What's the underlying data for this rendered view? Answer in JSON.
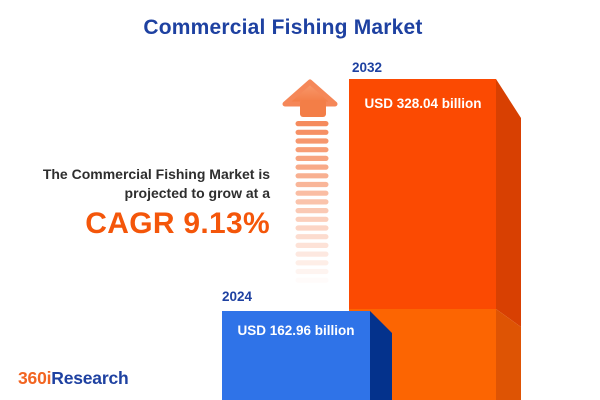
{
  "title": "Commercial Fishing Market",
  "annotation": {
    "line1": "The Commercial Fishing Market is",
    "line2": "projected to grow at a",
    "cagr_label": "CAGR 9.13%"
  },
  "chart_data": {
    "type": "bar",
    "title": "Commercial Fishing Market",
    "unit": "USD billion",
    "categories": [
      "2024",
      "2032"
    ],
    "values": [
      162.96,
      328.04
    ],
    "value_labels": [
      "USD 162.96 billion",
      "USD 328.04 billion"
    ],
    "cagr_percent": 9.13,
    "bar_colors": [
      "#2F73E8",
      "#FB4A02"
    ],
    "legend": false,
    "grid": false,
    "axes": false
  },
  "logo": {
    "prefix": "360i",
    "suffix": "Research"
  },
  "colors": {
    "title_blue": "#1E41A1",
    "accent_orange": "#F4560A",
    "bar_2024_face": "#2F73E8",
    "bar_2024_side": "#04328C",
    "bar_2032_face_upper": "#FB4A02",
    "bar_2032_face_lower": "#FC6502",
    "bar_2032_side_upper": "#D84002",
    "bar_2032_side_lower": "#DE5404",
    "arrow_orange": "#F58758",
    "logo_orange": "#F26522",
    "logo_blue": "#1E41A1",
    "text_dark": "#2E2E2E",
    "value_text": "#FFFFFF"
  }
}
